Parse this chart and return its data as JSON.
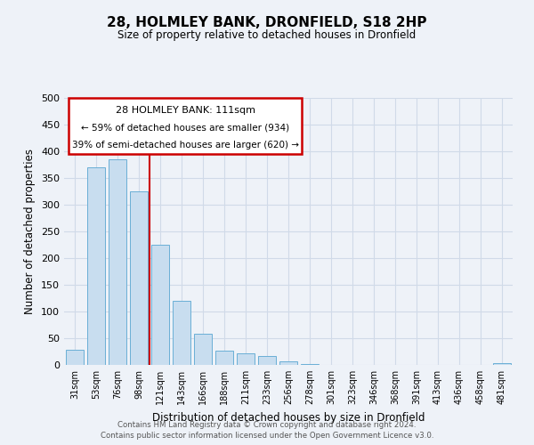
{
  "title": "28, HOLMLEY BANK, DRONFIELD, S18 2HP",
  "subtitle": "Size of property relative to detached houses in Dronfield",
  "xlabel": "Distribution of detached houses by size in Dronfield",
  "ylabel": "Number of detached properties",
  "categories": [
    "31sqm",
    "53sqm",
    "76sqm",
    "98sqm",
    "121sqm",
    "143sqm",
    "166sqm",
    "188sqm",
    "211sqm",
    "233sqm",
    "256sqm",
    "278sqm",
    "301sqm",
    "323sqm",
    "346sqm",
    "368sqm",
    "391sqm",
    "413sqm",
    "436sqm",
    "458sqm",
    "481sqm"
  ],
  "values": [
    28,
    370,
    385,
    325,
    225,
    120,
    58,
    27,
    22,
    16,
    6,
    1,
    0,
    0,
    0,
    0,
    0,
    0,
    0,
    0,
    3
  ],
  "bar_color": "#c8ddef",
  "bar_edge_color": "#6aafd6",
  "ylim": [
    0,
    500
  ],
  "yticks": [
    0,
    50,
    100,
    150,
    200,
    250,
    300,
    350,
    400,
    450,
    500
  ],
  "annotation_title": "28 HOLMLEY BANK: 111sqm",
  "annotation_line1": "← 59% of detached houses are smaller (934)",
  "annotation_line2": "39% of semi-detached houses are larger (620) →",
  "annotation_border_color": "#cc0000",
  "vertical_line_index": 3,
  "vertical_line_color": "#cc0000",
  "footer_line1": "Contains HM Land Registry data © Crown copyright and database right 2024.",
  "footer_line2": "Contains public sector information licensed under the Open Government Licence v3.0.",
  "background_color": "#eef2f8",
  "grid_color": "#d0dae8"
}
